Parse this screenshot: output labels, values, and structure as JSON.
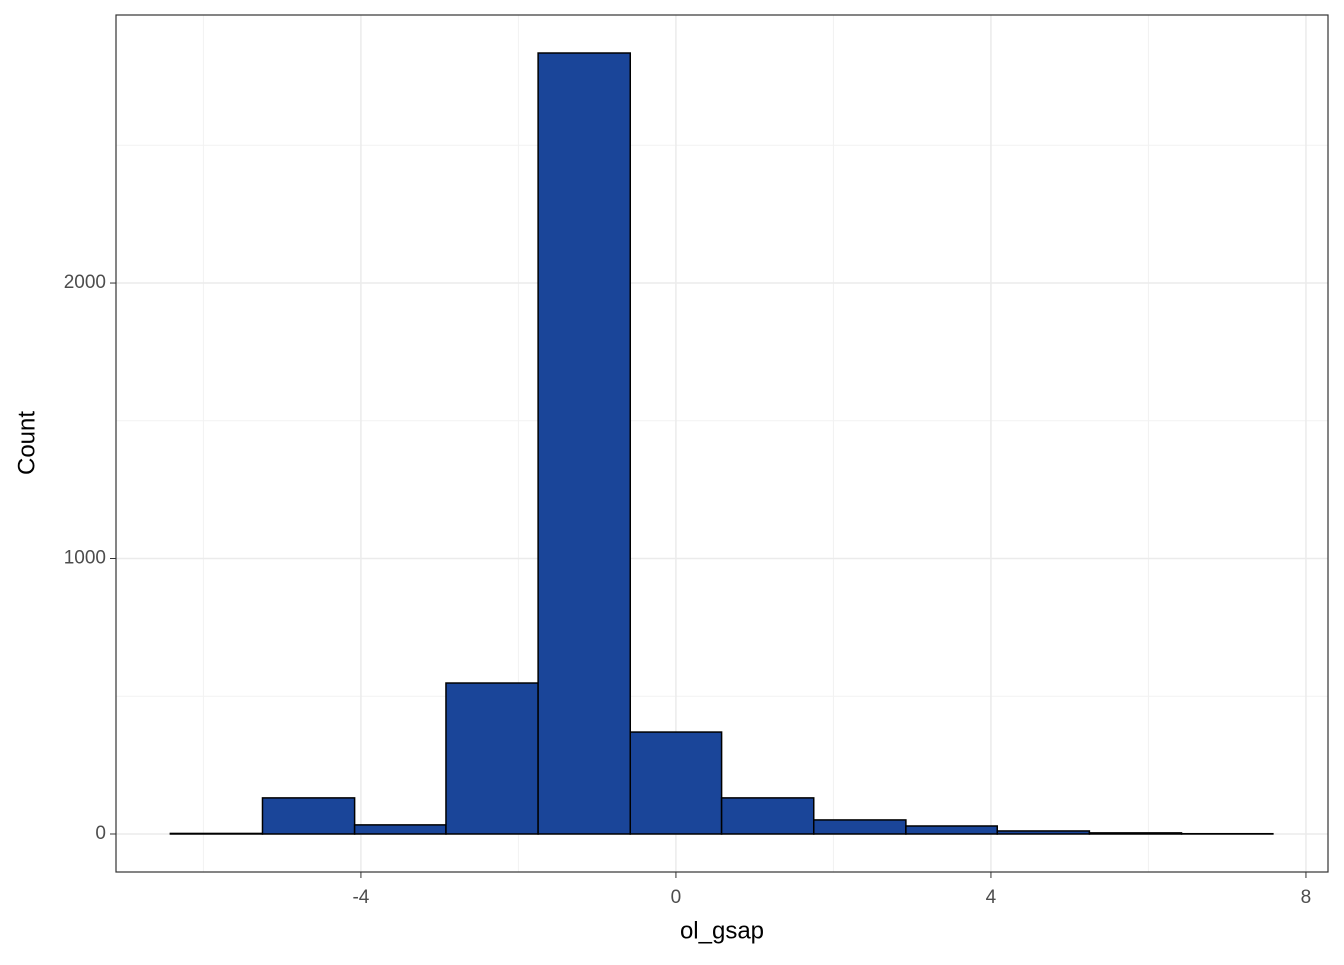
{
  "chart_data": {
    "type": "histogram",
    "x_label": "ol_gsap",
    "y_label": "Count",
    "bins": [
      -6.42,
      -5.25,
      -4.08,
      -2.92,
      -1.75,
      -0.58,
      0.58,
      1.75,
      2.92,
      4.08,
      5.25,
      6.42,
      7.58
    ],
    "values": [
      2,
      131,
      33,
      548,
      2835,
      370,
      131,
      51,
      29,
      11,
      4,
      1
    ],
    "color": "#1a4599",
    "edge_color": "#000000",
    "xlim": [
      -7.11,
      8.28
    ],
    "ylim": [
      -138,
      2973
    ],
    "xticks": [
      -4,
      0,
      4,
      8
    ],
    "yticks": [
      0,
      1000,
      2000
    ],
    "x_minor_ticks": [
      -6,
      -2,
      2,
      6
    ],
    "y_minor_ticks": [
      500,
      1500,
      2500
    ],
    "grid": true
  }
}
